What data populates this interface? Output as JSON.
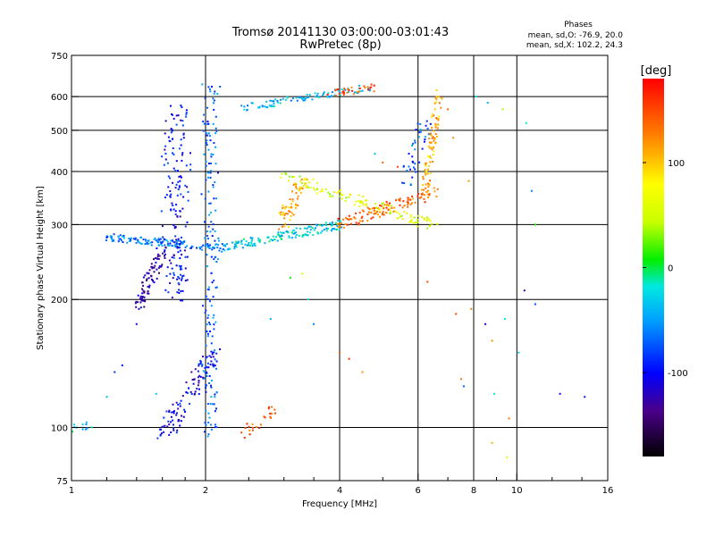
{
  "chart_data": {
    "type": "scatter",
    "title": "Tromsø 20141130 03:00:00-03:01:43",
    "subtitle": "RwPretec (8p)",
    "xlabel": "Frequency [MHz]",
    "ylabel": "Stationary phase Virtual Height [km]",
    "x_scale": "log",
    "y_scale": "log",
    "xlim": [
      1,
      16
    ],
    "ylim": [
      75,
      750
    ],
    "x_ticks": [
      1,
      2,
      4,
      6,
      8,
      10,
      16
    ],
    "x_tick_labels": [
      "1",
      "2",
      "4",
      "6",
      "8",
      "10",
      "16"
    ],
    "y_ticks": [
      75,
      100,
      200,
      300,
      400,
      500,
      600,
      750
    ],
    "y_tick_labels": [
      "75",
      "100",
      "200",
      "300",
      "400",
      "500",
      "600",
      "750"
    ],
    "x_gridlines": [
      2,
      4,
      6,
      8,
      10
    ],
    "y_gridlines": [
      100,
      200,
      300,
      400,
      500,
      600
    ],
    "grid": true,
    "stats": {
      "heading": "Phases",
      "line_o": "mean, sd,O: -76.9, 20.0",
      "line_x": "mean, sd,X: 102.2, 24.3"
    },
    "colorbar": {
      "label": "[deg]",
      "range": [
        -180,
        180
      ],
      "ticks": [
        100,
        0,
        -100
      ],
      "tick_labels": [
        "100",
        "0",
        "-100"
      ]
    },
    "traces": [
      {
        "x0": 1.2,
        "x1": 2.2,
        "h0": 280,
        "h1": 265,
        "phase": -60,
        "n": 140,
        "jitter": 0.02
      },
      {
        "x0": 2.2,
        "x1": 4.0,
        "h0": 265,
        "h1": 300,
        "phase": -30,
        "n": 150,
        "jitter": 0.025
      },
      {
        "x0": 3.0,
        "x1": 6.5,
        "h0": 390,
        "h1": 300,
        "phase": 60,
        "n": 120,
        "jitter": 0.03
      },
      {
        "x0": 4.0,
        "x1": 6.6,
        "h0": 300,
        "h1": 360,
        "phase": 140,
        "n": 110,
        "jitter": 0.03
      },
      {
        "x0": 6.2,
        "x1": 6.7,
        "h0": 350,
        "h1": 620,
        "phase": 110,
        "n": 90,
        "jitter": 0.02
      },
      {
        "x0": 2.0,
        "x1": 2.1,
        "h0": 95,
        "h1": 640,
        "phase": -70,
        "n": 180,
        "jitter": 0.03
      },
      {
        "x0": 1.65,
        "x1": 1.8,
        "h0": 200,
        "h1": 560,
        "phase": -100,
        "n": 170,
        "jitter": 0.04
      },
      {
        "x0": 1.4,
        "x1": 1.6,
        "h0": 190,
        "h1": 260,
        "phase": -125,
        "n": 80,
        "jitter": 0.03
      },
      {
        "x0": 1.6,
        "x1": 2.1,
        "h0": 95,
        "h1": 150,
        "phase": -105,
        "n": 110,
        "jitter": 0.04
      },
      {
        "x0": 2.4,
        "x1": 4.7,
        "h0": 565,
        "h1": 630,
        "phase": -40,
        "n": 90,
        "jitter": 0.02
      },
      {
        "x0": 3.8,
        "x1": 4.8,
        "h0": 610,
        "h1": 630,
        "phase": 150,
        "n": 30,
        "jitter": 0.02
      },
      {
        "x0": 3.0,
        "x1": 3.3,
        "h0": 300,
        "h1": 380,
        "phase": 110,
        "n": 60,
        "jitter": 0.04
      },
      {
        "x0": 2.4,
        "x1": 2.9,
        "h0": 95,
        "h1": 110,
        "phase": 140,
        "n": 25,
        "jitter": 0.03
      },
      {
        "x0": 5.7,
        "x1": 6.2,
        "h0": 380,
        "h1": 520,
        "phase": -70,
        "n": 40,
        "jitter": 0.04
      },
      {
        "x0": 1.0,
        "x1": 1.1,
        "h0": 98,
        "h1": 102,
        "phase": -30,
        "n": 12,
        "jitter": 0.02
      }
    ],
    "scattered_points": [
      [
        7.0,
        560,
        140
      ],
      [
        7.2,
        480,
        120
      ],
      [
        8.1,
        600,
        -20
      ],
      [
        8.6,
        580,
        -40
      ],
      [
        9.3,
        560,
        40
      ],
      [
        10.5,
        520,
        -20
      ],
      [
        10.8,
        360,
        -60
      ],
      [
        11.0,
        300,
        10
      ],
      [
        10.4,
        210,
        -130
      ],
      [
        11.0,
        195,
        -80
      ],
      [
        9.4,
        180,
        -20
      ],
      [
        8.5,
        175,
        -110
      ],
      [
        8.8,
        160,
        120
      ],
      [
        10.1,
        150,
        -30
      ],
      [
        7.5,
        130,
        130
      ],
      [
        7.6,
        125,
        -70
      ],
      [
        8.9,
        120,
        -20
      ],
      [
        9.6,
        105,
        130
      ],
      [
        8.8,
        92,
        110
      ],
      [
        9.5,
        85,
        60
      ],
      [
        12.5,
        120,
        -110
      ],
      [
        14.2,
        118,
        -95
      ],
      [
        4.0,
        150,
        140
      ],
      [
        4.2,
        145,
        160
      ],
      [
        3.3,
        230,
        50
      ],
      [
        3.1,
        225,
        10
      ],
      [
        3.4,
        200,
        -20
      ],
      [
        3.5,
        175,
        -60
      ],
      [
        2.8,
        180,
        -40
      ],
      [
        4.5,
        135,
        120
      ],
      [
        1.4,
        175,
        -110
      ],
      [
        1.3,
        140,
        -95
      ],
      [
        1.2,
        118,
        -40
      ],
      [
        1.25,
        135,
        -85
      ],
      [
        1.55,
        120,
        -30
      ],
      [
        7.3,
        185,
        150
      ],
      [
        7.9,
        190,
        130
      ],
      [
        6.3,
        220,
        150
      ],
      [
        5.4,
        410,
        150
      ],
      [
        5.0,
        420,
        140
      ],
      [
        4.8,
        440,
        -40
      ],
      [
        7.8,
        380,
        120
      ]
    ]
  }
}
